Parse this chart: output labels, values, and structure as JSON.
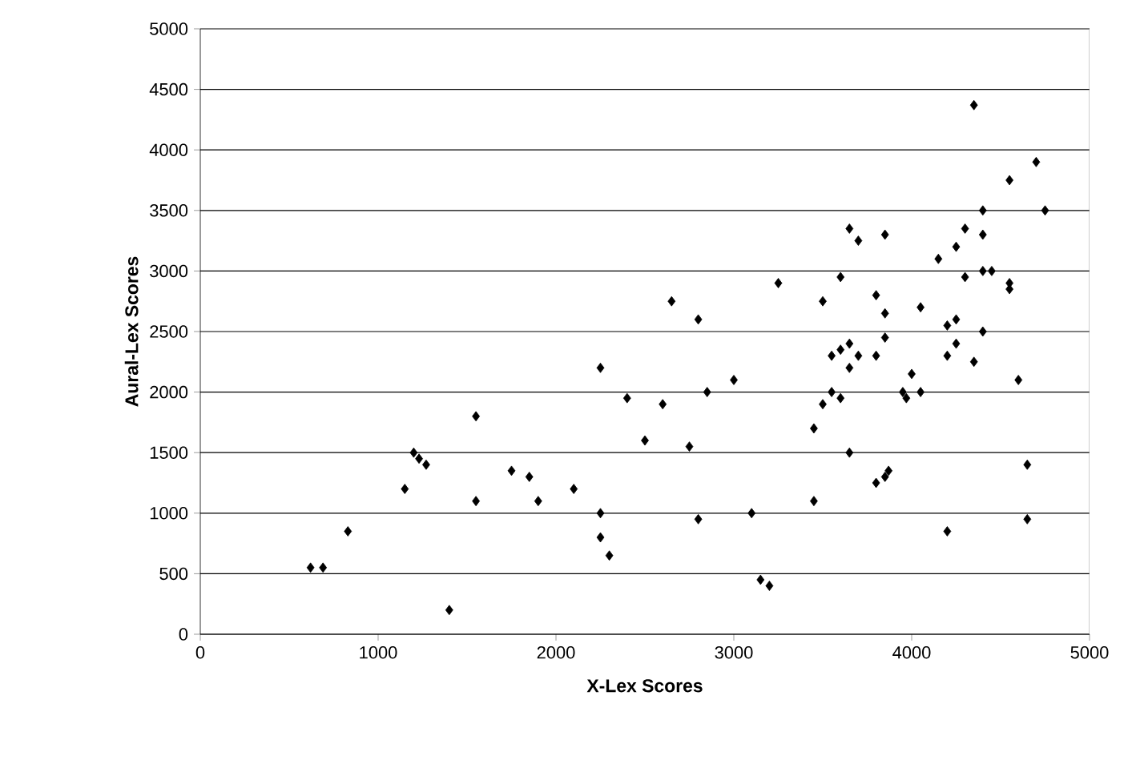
{
  "chart_data": {
    "type": "scatter",
    "xlabel": "X-Lex Scores",
    "ylabel": "Aural-Lex Scores",
    "xlim": [
      0,
      5000
    ],
    "ylim": [
      0,
      5000
    ],
    "xticks": [
      0,
      1000,
      2000,
      3000,
      4000,
      5000
    ],
    "yticks": [
      0,
      500,
      1000,
      1500,
      2000,
      2500,
      3000,
      3500,
      4000,
      4500,
      5000
    ],
    "grid": "y",
    "marker": "diamond",
    "series": [
      {
        "color": "#000000",
        "x": [
          620,
          690,
          830,
          1150,
          1200,
          1230,
          1270,
          1400,
          1550,
          1550,
          1750,
          1850,
          1900,
          2100,
          2250,
          2250,
          2250,
          2300,
          2400,
          2500,
          2600,
          2650,
          2750,
          2800,
          2800,
          2850,
          3000,
          3100,
          3150,
          3200,
          3250,
          3450,
          3450,
          3500,
          3500,
          3550,
          3550,
          3600,
          3600,
          3600,
          3650,
          3650,
          3650,
          3700,
          3700,
          3650,
          3800,
          3800,
          3800,
          3850,
          3850,
          3850,
          3850,
          3870,
          3950,
          3970,
          4000,
          4050,
          4050,
          4150,
          4200,
          4200,
          4250,
          4250,
          4250,
          4200,
          4300,
          4300,
          4350,
          4350,
          4400,
          4400,
          4400,
          4450,
          4400,
          4550,
          4550,
          4550,
          4600,
          4650,
          4650,
          4700,
          4750
        ],
        "values": [
          550,
          550,
          850,
          1200,
          1500,
          1450,
          1400,
          200,
          1800,
          1100,
          1350,
          1300,
          1100,
          1200,
          2200,
          1000,
          800,
          650,
          1950,
          1600,
          1900,
          2750,
          1550,
          2600,
          950,
          2000,
          2100,
          1000,
          450,
          400,
          2900,
          1700,
          1100,
          1900,
          2750,
          2300,
          2000,
          2950,
          2350,
          1950,
          3350,
          2400,
          2200,
          3250,
          2300,
          1500,
          2800,
          2300,
          1250,
          2650,
          2450,
          3300,
          1300,
          1350,
          2000,
          1950,
          2150,
          2000,
          2700,
          3100,
          2300,
          2550,
          2600,
          3200,
          2400,
          850,
          3350,
          2950,
          4370,
          2250,
          3500,
          3000,
          2500,
          3000,
          3300,
          3750,
          2850,
          2900,
          2100,
          1400,
          950,
          3900,
          3500
        ]
      }
    ]
  }
}
